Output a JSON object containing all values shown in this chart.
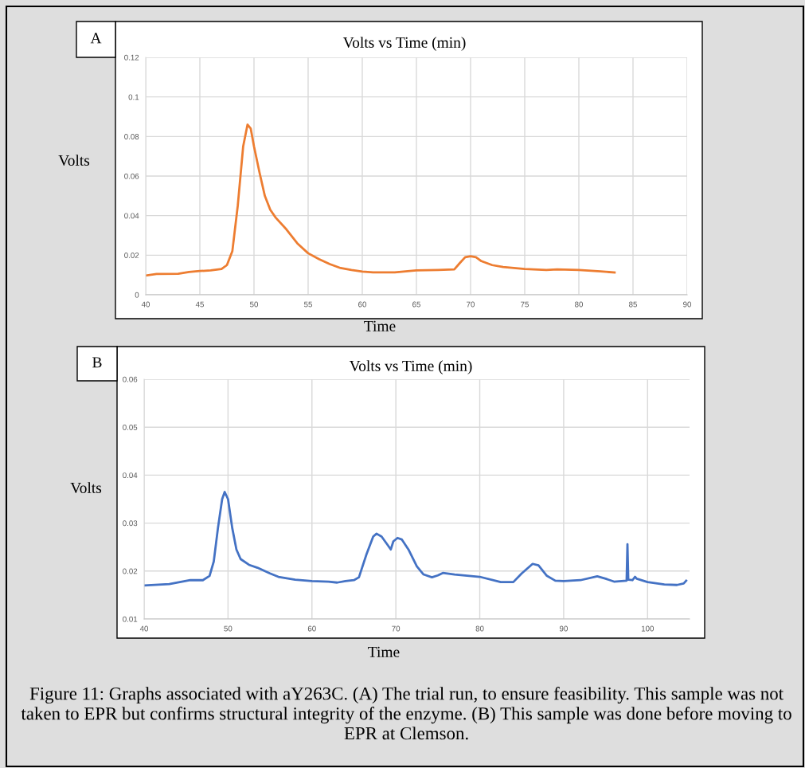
{
  "chart_data": [
    {
      "type": "line",
      "title": "Volts vs Time (min)",
      "xlabel": "Time",
      "ylabel": "Volts",
      "annotations": [
        "A"
      ],
      "grid": true,
      "xlim": [
        40,
        90
      ],
      "xticks": [
        40,
        45,
        50,
        55,
        60,
        65,
        70,
        75,
        80,
        85,
        90
      ],
      "ylim": [
        0,
        0.12
      ],
      "yticks": [
        0,
        0.02,
        0.04,
        0.06,
        0.08,
        0.1,
        0.12
      ],
      "series": [
        {
          "color": "#ed7d31",
          "x": [
            40,
            41,
            43,
            44,
            45,
            46,
            47,
            47.5,
            48,
            48.5,
            49,
            49.4,
            49.7,
            50,
            50.5,
            51,
            51.5,
            52,
            53,
            54,
            55,
            56,
            57,
            58,
            59,
            60,
            61,
            63,
            64,
            65,
            67,
            68.5,
            69,
            69.5,
            70,
            70.5,
            71,
            72,
            73,
            75,
            77,
            78,
            80,
            82,
            83.3
          ],
          "values": [
            0.0097,
            0.0105,
            0.0106,
            0.0115,
            0.012,
            0.0123,
            0.013,
            0.015,
            0.022,
            0.045,
            0.075,
            0.086,
            0.084,
            0.075,
            0.062,
            0.05,
            0.043,
            0.039,
            0.033,
            0.026,
            0.021,
            0.018,
            0.0155,
            0.0135,
            0.0125,
            0.0117,
            0.0113,
            0.0113,
            0.0118,
            0.0123,
            0.0125,
            0.0128,
            0.016,
            0.019,
            0.0195,
            0.019,
            0.017,
            0.015,
            0.014,
            0.013,
            0.0125,
            0.0128,
            0.0125,
            0.0118,
            0.0113
          ]
        }
      ]
    },
    {
      "type": "line",
      "title": "Volts vs Time (min)",
      "xlabel": "Time",
      "ylabel": "Volts",
      "annotations": [
        "B",
        "Figure 11: Graphs associated with aY263C. (A) The trial run, to ensure feasibility. This sample was not taken to EPR but confirms structural integrity of the enzyme. (B) This sample was done before moving to EPR at Clemson."
      ],
      "grid": true,
      "xlim": [
        40,
        105
      ],
      "xticks": [
        40,
        50,
        60,
        70,
        80,
        90,
        100
      ],
      "ylim": [
        0.01,
        0.06
      ],
      "yticks": [
        0.01,
        0.02,
        0.03,
        0.04,
        0.05,
        0.06
      ],
      "series": [
        {
          "color": "#4472c4",
          "x": [
            40,
            43,
            44.5,
            45.5,
            47,
            47.8,
            48.3,
            48.8,
            49.3,
            49.6,
            50,
            50.5,
            51,
            51.5,
            52.5,
            53.5,
            55,
            56,
            58,
            60,
            62,
            63,
            64,
            65,
            65.6,
            66.5,
            67.3,
            67.7,
            68.3,
            69,
            69.4,
            69.7,
            70.2,
            70.7,
            71.5,
            72.5,
            73.3,
            74.3,
            75,
            75.6,
            77,
            80,
            82.5,
            84,
            85,
            86.3,
            87,
            88,
            89,
            90,
            92,
            94,
            95,
            96,
            97.5,
            97.6,
            97.7,
            98.2,
            98.5,
            98.7,
            100,
            102,
            103.5,
            104.3,
            104.6
          ],
          "values": [
            0.017,
            0.0173,
            0.0178,
            0.0181,
            0.0181,
            0.019,
            0.022,
            0.029,
            0.035,
            0.0365,
            0.035,
            0.029,
            0.0245,
            0.0225,
            0.0213,
            0.0207,
            0.0195,
            0.0188,
            0.0182,
            0.0179,
            0.0178,
            0.0176,
            0.0179,
            0.0181,
            0.0187,
            0.0235,
            0.0272,
            0.0278,
            0.0272,
            0.0255,
            0.0245,
            0.0262,
            0.0269,
            0.0266,
            0.0245,
            0.021,
            0.0193,
            0.0187,
            0.0191,
            0.0196,
            0.0193,
            0.0188,
            0.0177,
            0.0177,
            0.0195,
            0.0215,
            0.0212,
            0.019,
            0.018,
            0.0179,
            0.0181,
            0.0189,
            0.0184,
            0.0178,
            0.018,
            0.0256,
            0.0182,
            0.0181,
            0.0188,
            0.0184,
            0.0177,
            0.0172,
            0.0171,
            0.0174,
            0.018
          ]
        }
      ]
    }
  ]
}
